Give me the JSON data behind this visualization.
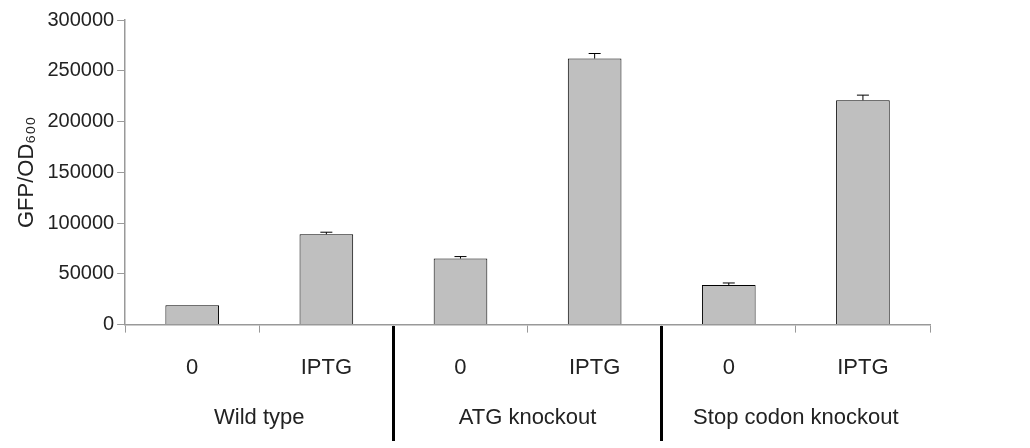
{
  "chart_data": {
    "type": "bar",
    "ylabel": "GFP/OD₆₀₀",
    "categories": [
      "0",
      "IPTG",
      "0",
      "IPTG",
      "0",
      "IPTG"
    ],
    "values": [
      19000,
      89000,
      65000,
      262000,
      39000,
      221000
    ],
    "errors": [
      null,
      2000,
      2000,
      5000,
      2000,
      5000
    ],
    "color": "#bfbfbf",
    "ylim": [
      0,
      300000
    ],
    "yticks": [
      0,
      50000,
      100000,
      150000,
      200000,
      250000,
      300000
    ],
    "grid": false,
    "annotations": [
      "Wild type",
      "ATG knockout",
      "Stop codon knockout"
    ]
  }
}
